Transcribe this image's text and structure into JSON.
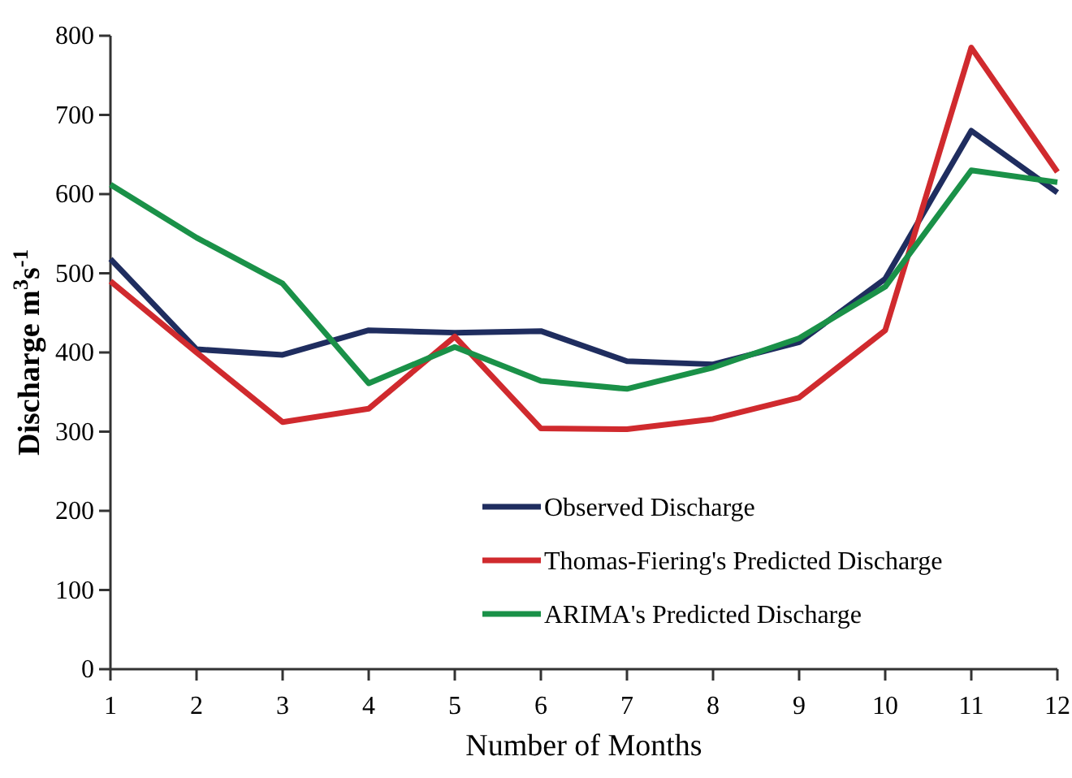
{
  "chart_data": {
    "type": "line",
    "xlabel": "Number of Months",
    "ylabel": "Discharge m$^{3}$s$^{-1}$",
    "x": [
      1,
      2,
      3,
      4,
      5,
      6,
      7,
      8,
      9,
      10,
      11,
      12
    ],
    "xlim": [
      1,
      12
    ],
    "xticks": [
      1,
      2,
      3,
      4,
      5,
      6,
      7,
      8,
      9,
      10,
      11,
      12
    ],
    "ylim": [
      0,
      800
    ],
    "yticks": [
      0,
      100,
      200,
      300,
      400,
      500,
      600,
      700,
      800
    ],
    "grid": false,
    "legend": "bottom right",
    "marker": "none",
    "line_style": "solid",
    "series": [
      {
        "name": "Observed Discharge",
        "color": "#1f2d5f",
        "values": [
          518,
          404,
          397,
          428,
          425,
          427,
          389,
          385,
          413,
          493,
          680,
          602
        ]
      },
      {
        "name": "Thomas-Fiering's Predicted Discharge",
        "color": "#d02a2e",
        "values": [
          490,
          400,
          312,
          329,
          420,
          304,
          303,
          316,
          343,
          428,
          785,
          628
        ]
      },
      {
        "name": "ARIMA's Predicted Discharge",
        "color": "#1a9148",
        "values": [
          612,
          545,
          487,
          361,
          407,
          364,
          354,
          381,
          418,
          483,
          630,
          615
        ]
      }
    ]
  }
}
